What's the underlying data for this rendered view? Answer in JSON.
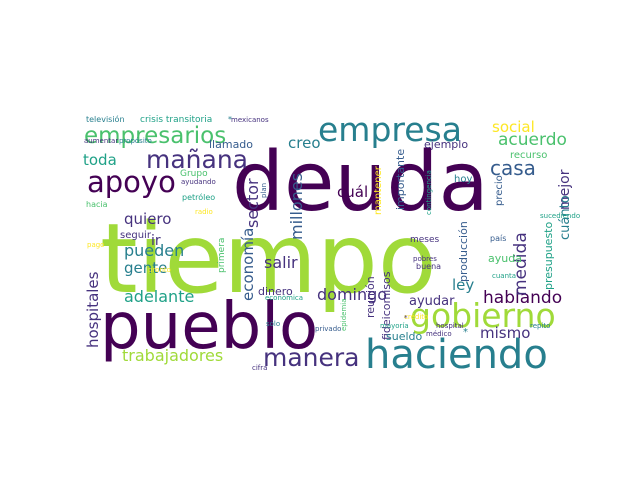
{
  "background_color": "#ffffff",
  "palette": {
    "dark_purple": "#440154",
    "indigo": "#46327e",
    "blue": "#365c8d",
    "teal_blue": "#277f8e",
    "teal": "#1fa187",
    "green": "#4ac16d",
    "lime": "#a0da39",
    "yellow": "#fde725"
  },
  "words": [
    {
      "text": "tiempo",
      "color_key": "lime"
    },
    {
      "text": "deuda",
      "color_key": "dark_purple"
    },
    {
      "text": "pueblo",
      "color_key": "dark_purple"
    },
    {
      "text": "haciendo",
      "color_key": "teal_blue"
    },
    {
      "text": "gobierno",
      "color_key": "lime"
    },
    {
      "text": "empresa",
      "color_key": "teal_blue"
    },
    {
      "text": "empresarios",
      "color_key": "green"
    },
    {
      "text": "apoyo",
      "color_key": "dark_purple"
    },
    {
      "text": "mañana",
      "color_key": "indigo"
    },
    {
      "text": "manera",
      "color_key": "indigo"
    },
    {
      "text": "casa",
      "color_key": "blue"
    },
    {
      "text": "social",
      "color_key": "yellow"
    },
    {
      "text": "acuerdo",
      "color_key": "green"
    },
    {
      "text": "hablando",
      "color_key": "dark_purple"
    },
    {
      "text": "mismo",
      "color_key": "indigo"
    },
    {
      "text": "trabajadores",
      "color_key": "lime"
    },
    {
      "text": "hospitales",
      "color_key": "indigo"
    },
    {
      "text": "adelante",
      "color_key": "teal"
    },
    {
      "text": "economía",
      "color_key": "blue"
    },
    {
      "text": "sector",
      "color_key": "indigo"
    },
    {
      "text": "pueden",
      "color_key": "teal_blue"
    },
    {
      "text": "gente",
      "color_key": "teal_blue"
    },
    {
      "text": "quiero",
      "color_key": "indigo"
    },
    {
      "text": "toda",
      "color_key": "teal"
    },
    {
      "text": "salir",
      "color_key": "indigo"
    },
    {
      "text": "domingo",
      "color_key": "indigo"
    },
    {
      "text": "millones",
      "color_key": "blue"
    },
    {
      "text": "creo",
      "color_key": "teal_blue"
    },
    {
      "text": "cuál",
      "color_key": "dark_purple"
    },
    {
      "text": "mejor",
      "color_key": "indigo"
    },
    {
      "text": "cuánto",
      "color_key": "teal_blue"
    },
    {
      "text": "medida",
      "color_key": "indigo"
    },
    {
      "text": "ley",
      "color_key": "teal_blue"
    },
    {
      "text": "ayudar",
      "color_key": "indigo"
    },
    {
      "text": "ir",
      "color_key": "indigo"
    },
    {
      "text": "seguir",
      "color_key": "indigo"
    },
    {
      "text": "llamado",
      "color_key": "blue"
    },
    {
      "text": "ejemplo",
      "color_key": "indigo"
    },
    {
      "text": "importante",
      "color_key": "blue"
    },
    {
      "text": "mantener",
      "color_key": "yellow"
    },
    {
      "text": "reunión",
      "color_key": "indigo"
    },
    {
      "text": "fideicomisos",
      "color_key": "indigo"
    },
    {
      "text": "producción",
      "color_key": "blue"
    },
    {
      "text": "presupuesto",
      "color_key": "teal"
    },
    {
      "text": "dinero",
      "color_key": "indigo"
    },
    {
      "text": "sueldo",
      "color_key": "teal_blue"
    },
    {
      "text": "ayuda",
      "color_key": "green"
    },
    {
      "text": "hoy",
      "color_key": "teal_blue"
    },
    {
      "text": "recurso",
      "color_key": "green"
    },
    {
      "text": "precio",
      "color_key": "blue"
    },
    {
      "text": "meses",
      "color_key": "indigo"
    },
    {
      "text": "buena",
      "color_key": "indigo"
    },
    {
      "text": "primera",
      "color_key": "green"
    },
    {
      "text": "plan",
      "color_key": "blue"
    },
    {
      "text": "Grupo",
      "color_key": "green"
    },
    {
      "text": "ayudando",
      "color_key": "indigo"
    },
    {
      "text": "petróleo",
      "color_key": "teal"
    },
    {
      "text": "radio",
      "color_key": "yellow"
    },
    {
      "text": "hacia",
      "color_key": "green"
    },
    {
      "text": "pago",
      "color_key": "yellow"
    },
    {
      "text": "pronto",
      "color_key": "yellow"
    },
    {
      "text": "televisión",
      "color_key": "teal_blue"
    },
    {
      "text": "crisis transitoria",
      "color_key": "teal"
    },
    {
      "text": "mexicanos",
      "color_key": "indigo"
    },
    {
      "text": "aumentar",
      "color_key": "indigo"
    },
    {
      "text": "propósito",
      "color_key": "teal_blue"
    },
    {
      "text": "contingencia",
      "color_key": "teal"
    },
    {
      "text": "sucediendo",
      "color_key": "teal"
    },
    {
      "text": "país",
      "color_key": "blue"
    },
    {
      "text": "cuanta",
      "color_key": "teal"
    },
    {
      "text": "repito",
      "color_key": "teal_blue"
    },
    {
      "text": "hospital",
      "color_key": "indigo"
    },
    {
      "text": "médico",
      "color_key": "indigo"
    },
    {
      "text": "pobres",
      "color_key": "indigo"
    },
    {
      "text": "crédito",
      "color_key": "yellow"
    },
    {
      "text": "mayoría",
      "color_key": "teal"
    },
    {
      "text": "epidemia",
      "color_key": "green"
    },
    {
      "text": "privado",
      "color_key": "blue"
    },
    {
      "text": "económica",
      "color_key": "teal"
    },
    {
      "text": "sólo",
      "color_key": "teal_blue"
    },
    {
      "text": "cifra",
      "color_key": "indigo"
    },
    {
      "text": "*",
      "color_key": "teal_blue"
    },
    {
      "text": "*",
      "color_key": "teal_blue"
    },
    {
      "text": "*",
      "color_key": "indigo"
    }
  ]
}
